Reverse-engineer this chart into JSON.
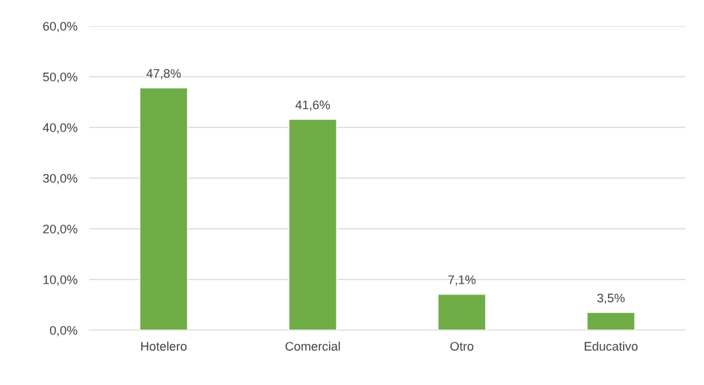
{
  "chart_data": {
    "type": "bar",
    "categories": [
      "Hotelero",
      "Comercial",
      "Otro",
      "Educativo"
    ],
    "values": [
      47.8,
      41.6,
      7.1,
      3.5
    ],
    "value_labels": [
      "47,8%",
      "41,6%",
      "7,1%",
      "3,5%"
    ],
    "color": "#70ad47",
    "ylim": [
      0,
      60
    ],
    "yticks": [
      {
        "value": 0,
        "label": "0,0%"
      },
      {
        "value": 10,
        "label": "10,0%"
      },
      {
        "value": 20,
        "label": "20,0%"
      },
      {
        "value": 30,
        "label": "30,0%"
      },
      {
        "value": 40,
        "label": "40,0%"
      },
      {
        "value": 50,
        "label": "50,0%"
      },
      {
        "value": 60,
        "label": "60,0%"
      }
    ],
    "grid": "y",
    "legend": false
  }
}
